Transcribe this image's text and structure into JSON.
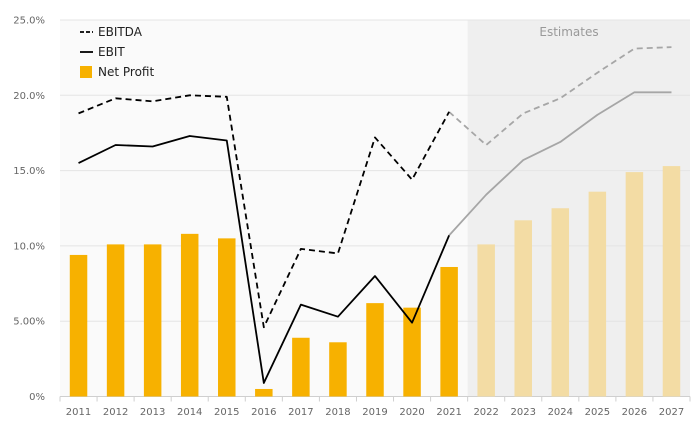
{
  "chart_data": {
    "type": "bar",
    "categories": [
      "2011",
      "2012",
      "2013",
      "2014",
      "2015",
      "2016",
      "2017",
      "2018",
      "2019",
      "2020",
      "2021",
      "2022",
      "2023",
      "2024",
      "2025",
      "2026",
      "2027"
    ],
    "series": [
      {
        "name": "EBITDA",
        "kind": "line",
        "style": "dashed",
        "values": [
          18.8,
          19.8,
          19.6,
          20.0,
          19.9,
          4.6,
          9.8,
          9.5,
          17.2,
          14.4,
          18.9,
          16.7,
          18.8,
          19.8,
          21.5,
          23.1,
          23.2
        ]
      },
      {
        "name": "EBIT",
        "kind": "line",
        "style": "solid",
        "values": [
          15.5,
          16.7,
          16.6,
          17.3,
          17.0,
          0.9,
          6.1,
          5.3,
          8.0,
          4.9,
          10.7,
          13.4,
          15.7,
          16.9,
          18.7,
          20.2,
          20.2
        ]
      },
      {
        "name": "Net Profit",
        "kind": "bar",
        "values": [
          9.4,
          10.1,
          10.1,
          10.8,
          10.5,
          0.5,
          3.9,
          3.6,
          6.2,
          5.9,
          8.6,
          10.1,
          11.7,
          12.5,
          13.6,
          14.9,
          15.3
        ]
      }
    ],
    "estimate_start_index": 11,
    "annotation": "Estimates",
    "ylim": [
      0,
      25
    ],
    "yticks": [
      "0%",
      "5.00%",
      "10.0%",
      "15.0%",
      "20.0%",
      "25.0%"
    ],
    "grid": true,
    "legend_position": "top-left",
    "colors": {
      "bar": "#F7B100",
      "bar_estimate": "#F3DCA4",
      "line": "#000000",
      "line_estimate": "#A6A6A6",
      "estimate_bg": "#EFEFEF",
      "plot_bg": "#FAFAFA",
      "grid": "#E4E4E4"
    }
  }
}
